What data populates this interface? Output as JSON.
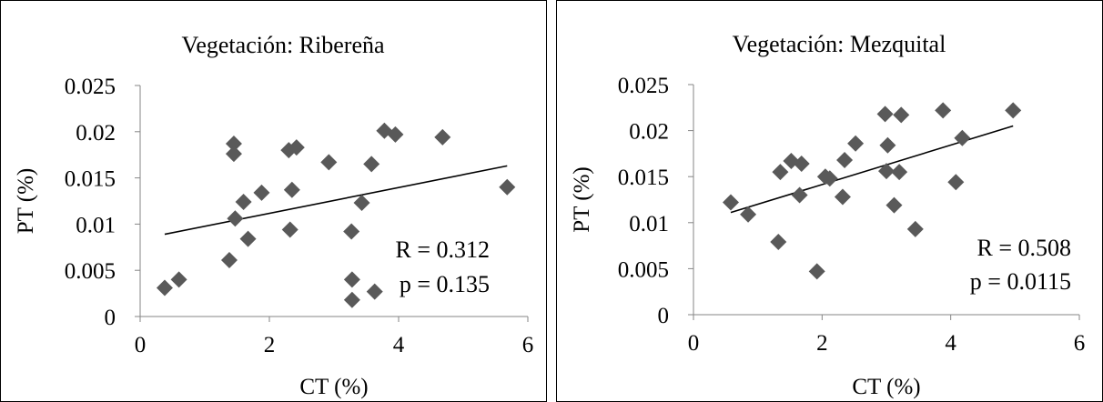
{
  "chart_data": [
    {
      "type": "scatter",
      "title": "Vegetación: Ribereña",
      "xlabel": "CT (%)",
      "ylabel": "PT (%)",
      "xlim": [
        0,
        6
      ],
      "ylim": [
        0,
        0.025
      ],
      "xticks": [
        "0",
        "2",
        "4",
        "6"
      ],
      "yticks": [
        "0",
        "0.005",
        "0.01",
        "0.015",
        "0.02",
        "0.025"
      ],
      "grid": false,
      "marker_color": "#595959",
      "points": [
        {
          "x": 0.38,
          "y": 0.0031
        },
        {
          "x": 0.6,
          "y": 0.004
        },
        {
          "x": 1.38,
          "y": 0.0061
        },
        {
          "x": 1.45,
          "y": 0.0187
        },
        {
          "x": 1.45,
          "y": 0.0176
        },
        {
          "x": 1.47,
          "y": 0.0106
        },
        {
          "x": 1.6,
          "y": 0.0124
        },
        {
          "x": 1.67,
          "y": 0.0084
        },
        {
          "x": 1.88,
          "y": 0.0134
        },
        {
          "x": 2.3,
          "y": 0.018
        },
        {
          "x": 2.32,
          "y": 0.0094
        },
        {
          "x": 2.35,
          "y": 0.0137
        },
        {
          "x": 2.42,
          "y": 0.0183
        },
        {
          "x": 2.92,
          "y": 0.0167
        },
        {
          "x": 3.27,
          "y": 0.0092
        },
        {
          "x": 3.28,
          "y": 0.004
        },
        {
          "x": 3.28,
          "y": 0.0018
        },
        {
          "x": 3.43,
          "y": 0.0123
        },
        {
          "x": 3.58,
          "y": 0.0165
        },
        {
          "x": 3.63,
          "y": 0.0027
        },
        {
          "x": 3.78,
          "y": 0.0201
        },
        {
          "x": 3.95,
          "y": 0.0197
        },
        {
          "x": 4.68,
          "y": 0.0194
        },
        {
          "x": 5.68,
          "y": 0.014
        }
      ],
      "trendline": {
        "x": [
          0.38,
          5.68
        ],
        "y": [
          0.0089,
          0.0163
        ]
      },
      "annotations": [
        "R = 0.312",
        "p = 0.135"
      ]
    },
    {
      "type": "scatter",
      "title": "Vegetación: Mezquital",
      "xlabel": "CT (%)",
      "ylabel": "PT (%)",
      "xlim": [
        0,
        6
      ],
      "ylim": [
        0,
        0.025
      ],
      "xticks": [
        "0",
        "2",
        "4",
        "6"
      ],
      "yticks": [
        "0",
        "0.005",
        "0.01",
        "0.015",
        "0.02",
        "0.025"
      ],
      "grid": false,
      "marker_color": "#595959",
      "points": [
        {
          "x": 0.58,
          "y": 0.0122
        },
        {
          "x": 0.85,
          "y": 0.0109
        },
        {
          "x": 1.32,
          "y": 0.0079
        },
        {
          "x": 1.35,
          "y": 0.0155
        },
        {
          "x": 1.52,
          "y": 0.0167
        },
        {
          "x": 1.65,
          "y": 0.013
        },
        {
          "x": 1.68,
          "y": 0.0164
        },
        {
          "x": 1.92,
          "y": 0.0047
        },
        {
          "x": 2.05,
          "y": 0.015
        },
        {
          "x": 2.12,
          "y": 0.0148
        },
        {
          "x": 2.32,
          "y": 0.0128
        },
        {
          "x": 2.35,
          "y": 0.0168
        },
        {
          "x": 2.52,
          "y": 0.0186
        },
        {
          "x": 2.98,
          "y": 0.0218
        },
        {
          "x": 3.0,
          "y": 0.0156
        },
        {
          "x": 3.02,
          "y": 0.0184
        },
        {
          "x": 3.12,
          "y": 0.0119
        },
        {
          "x": 3.2,
          "y": 0.0155
        },
        {
          "x": 3.23,
          "y": 0.0217
        },
        {
          "x": 3.45,
          "y": 0.0093
        },
        {
          "x": 3.88,
          "y": 0.0222
        },
        {
          "x": 4.08,
          "y": 0.0144
        },
        {
          "x": 4.18,
          "y": 0.0192
        },
        {
          "x": 4.97,
          "y": 0.0222
        }
      ],
      "trendline": {
        "x": [
          0.58,
          4.97
        ],
        "y": [
          0.0111,
          0.0205
        ]
      },
      "annotations": [
        "R = 0.508",
        "p = 0.0115"
      ]
    }
  ]
}
